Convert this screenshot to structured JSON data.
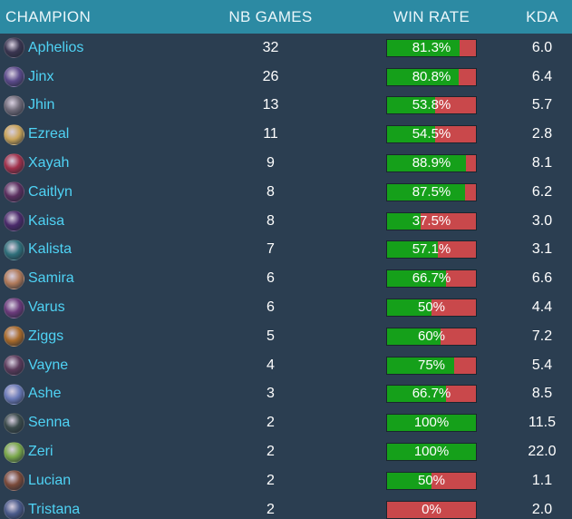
{
  "header": {
    "champion": "CHAMPION",
    "games": "NB GAMES",
    "winrate": "WIN RATE",
    "kda": "KDA"
  },
  "colors": {
    "header_bg": "#2c8aa3",
    "background": "#2b3e51",
    "champion_name": "#4fd3f5",
    "win_fill": "#15a01a",
    "loss_fill": "#c9484b"
  },
  "rows": [
    {
      "name": "Aphelios",
      "games": "32",
      "winrate": "81.3%",
      "win_fraction": 0.813,
      "kda": "6.0",
      "avatar_color": "#3a3550",
      "avatar_icon": "aphelios-portrait-icon"
    },
    {
      "name": "Jinx",
      "games": "26",
      "winrate": "80.8%",
      "win_fraction": 0.808,
      "kda": "6.4",
      "avatar_color": "#5b4a8a",
      "avatar_icon": "jinx-portrait-icon"
    },
    {
      "name": "Jhin",
      "games": "13",
      "winrate": "53.8%",
      "win_fraction": 0.538,
      "kda": "5.7",
      "avatar_color": "#6f6a78",
      "avatar_icon": "jhin-portrait-icon"
    },
    {
      "name": "Ezreal",
      "games": "11",
      "winrate": "54.5%",
      "win_fraction": 0.545,
      "kda": "2.8",
      "avatar_color": "#c9a45a",
      "avatar_icon": "ezreal-portrait-icon"
    },
    {
      "name": "Xayah",
      "games": "9",
      "winrate": "88.9%",
      "win_fraction": 0.889,
      "kda": "8.1",
      "avatar_color": "#a0304a",
      "avatar_icon": "xayah-portrait-icon"
    },
    {
      "name": "Caitlyn",
      "games": "8",
      "winrate": "87.5%",
      "win_fraction": 0.875,
      "kda": "6.2",
      "avatar_color": "#5a2e5e",
      "avatar_icon": "caitlyn-portrait-icon"
    },
    {
      "name": "Kaisa",
      "games": "8",
      "winrate": "37.5%",
      "win_fraction": 0.375,
      "kda": "3.0",
      "avatar_color": "#4a2a6a",
      "avatar_icon": "kaisa-portrait-icon"
    },
    {
      "name": "Kalista",
      "games": "7",
      "winrate": "57.1%",
      "win_fraction": 0.571,
      "kda": "3.1",
      "avatar_color": "#2f6f7a",
      "avatar_icon": "kalista-portrait-icon"
    },
    {
      "name": "Samira",
      "games": "6",
      "winrate": "66.7%",
      "win_fraction": 0.667,
      "kda": "6.6",
      "avatar_color": "#b07a5a",
      "avatar_icon": "samira-portrait-icon"
    },
    {
      "name": "Varus",
      "games": "6",
      "winrate": "50%",
      "win_fraction": 0.5,
      "kda": "4.4",
      "avatar_color": "#6a3a7a",
      "avatar_icon": "varus-portrait-icon"
    },
    {
      "name": "Ziggs",
      "games": "5",
      "winrate": "60%",
      "win_fraction": 0.6,
      "kda": "7.2",
      "avatar_color": "#a86a2a",
      "avatar_icon": "ziggs-portrait-icon"
    },
    {
      "name": "Vayne",
      "games": "4",
      "winrate": "75%",
      "win_fraction": 0.75,
      "kda": "5.4",
      "avatar_color": "#5a3a5a",
      "avatar_icon": "vayne-portrait-icon"
    },
    {
      "name": "Ashe",
      "games": "3",
      "winrate": "66.7%",
      "win_fraction": 0.667,
      "kda": "8.5",
      "avatar_color": "#6a7ab8",
      "avatar_icon": "ashe-portrait-icon"
    },
    {
      "name": "Senna",
      "games": "2",
      "winrate": "100%",
      "win_fraction": 1.0,
      "kda": "11.5",
      "avatar_color": "#3a4a4a",
      "avatar_icon": "senna-portrait-icon"
    },
    {
      "name": "Zeri",
      "games": "2",
      "winrate": "100%",
      "win_fraction": 1.0,
      "kda": "22.0",
      "avatar_color": "#7aa84a",
      "avatar_icon": "zeri-portrait-icon"
    },
    {
      "name": "Lucian",
      "games": "2",
      "winrate": "50%",
      "win_fraction": 0.5,
      "kda": "1.1",
      "avatar_color": "#7a4a3a",
      "avatar_icon": "lucian-portrait-icon"
    },
    {
      "name": "Tristana",
      "games": "2",
      "winrate": "0%",
      "win_fraction": 0.0,
      "kda": "2.0",
      "avatar_color": "#4a5a8a",
      "avatar_icon": "tristana-portrait-icon"
    }
  ]
}
